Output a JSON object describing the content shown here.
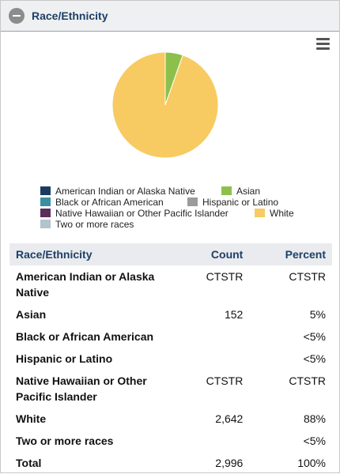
{
  "panel": {
    "title": "Race/Ethnicity"
  },
  "chart_data": {
    "type": "pie",
    "slices": [
      {
        "label": "American Indian or Alaska Native",
        "value": 0,
        "color": "#1b3c61"
      },
      {
        "label": "Asian",
        "value": 5,
        "color": "#8cc04b"
      },
      {
        "label": "Black or African American",
        "value": 0,
        "color": "#3b8fa0"
      },
      {
        "label": "Hispanic or Latino",
        "value": 0,
        "color": "#9b9b9b"
      },
      {
        "label": "Native Hawaiian or Other Pacific Islander",
        "value": 0,
        "color": "#5a2d5b"
      },
      {
        "label": "White",
        "value": 88,
        "color": "#f8ca62"
      },
      {
        "label": "Two or more races",
        "value": 0,
        "color": "#b3c3cc"
      }
    ],
    "legend_position": "bottom"
  },
  "legend": [
    {
      "label": "American Indian or Alaska Native",
      "color": "#1b3c61"
    },
    {
      "label": "Asian",
      "color": "#8cc04b"
    },
    {
      "label": "Black or African American",
      "color": "#3b8fa0"
    },
    {
      "label": "Hispanic or Latino",
      "color": "#9b9b9b"
    },
    {
      "label": "Native Hawaiian or Other Pacific Islander",
      "color": "#5a2d5b"
    },
    {
      "label": "White",
      "color": "#f8ca62"
    },
    {
      "label": "Two or more races",
      "color": "#b3c3cc"
    }
  ],
  "table": {
    "headers": {
      "name": "Race/Ethnicity",
      "count": "Count",
      "percent": "Percent"
    },
    "rows": [
      {
        "name": "American Indian or Alaska Native",
        "count": "CTSTR",
        "percent": "CTSTR"
      },
      {
        "name": "Asian",
        "count": "152",
        "percent": "5%"
      },
      {
        "name": "Black or African American",
        "count": "",
        "percent": "<5%"
      },
      {
        "name": "Hispanic or Latino",
        "count": "",
        "percent": "<5%"
      },
      {
        "name": "Native Hawaiian or Other Pacific Islander",
        "count": "CTSTR",
        "percent": "CTSTR"
      },
      {
        "name": "White",
        "count": "2,642",
        "percent": "88%"
      },
      {
        "name": "Two or more races",
        "count": "",
        "percent": "<5%"
      },
      {
        "name": "Total",
        "count": "2,996",
        "percent": "100%"
      }
    ]
  }
}
